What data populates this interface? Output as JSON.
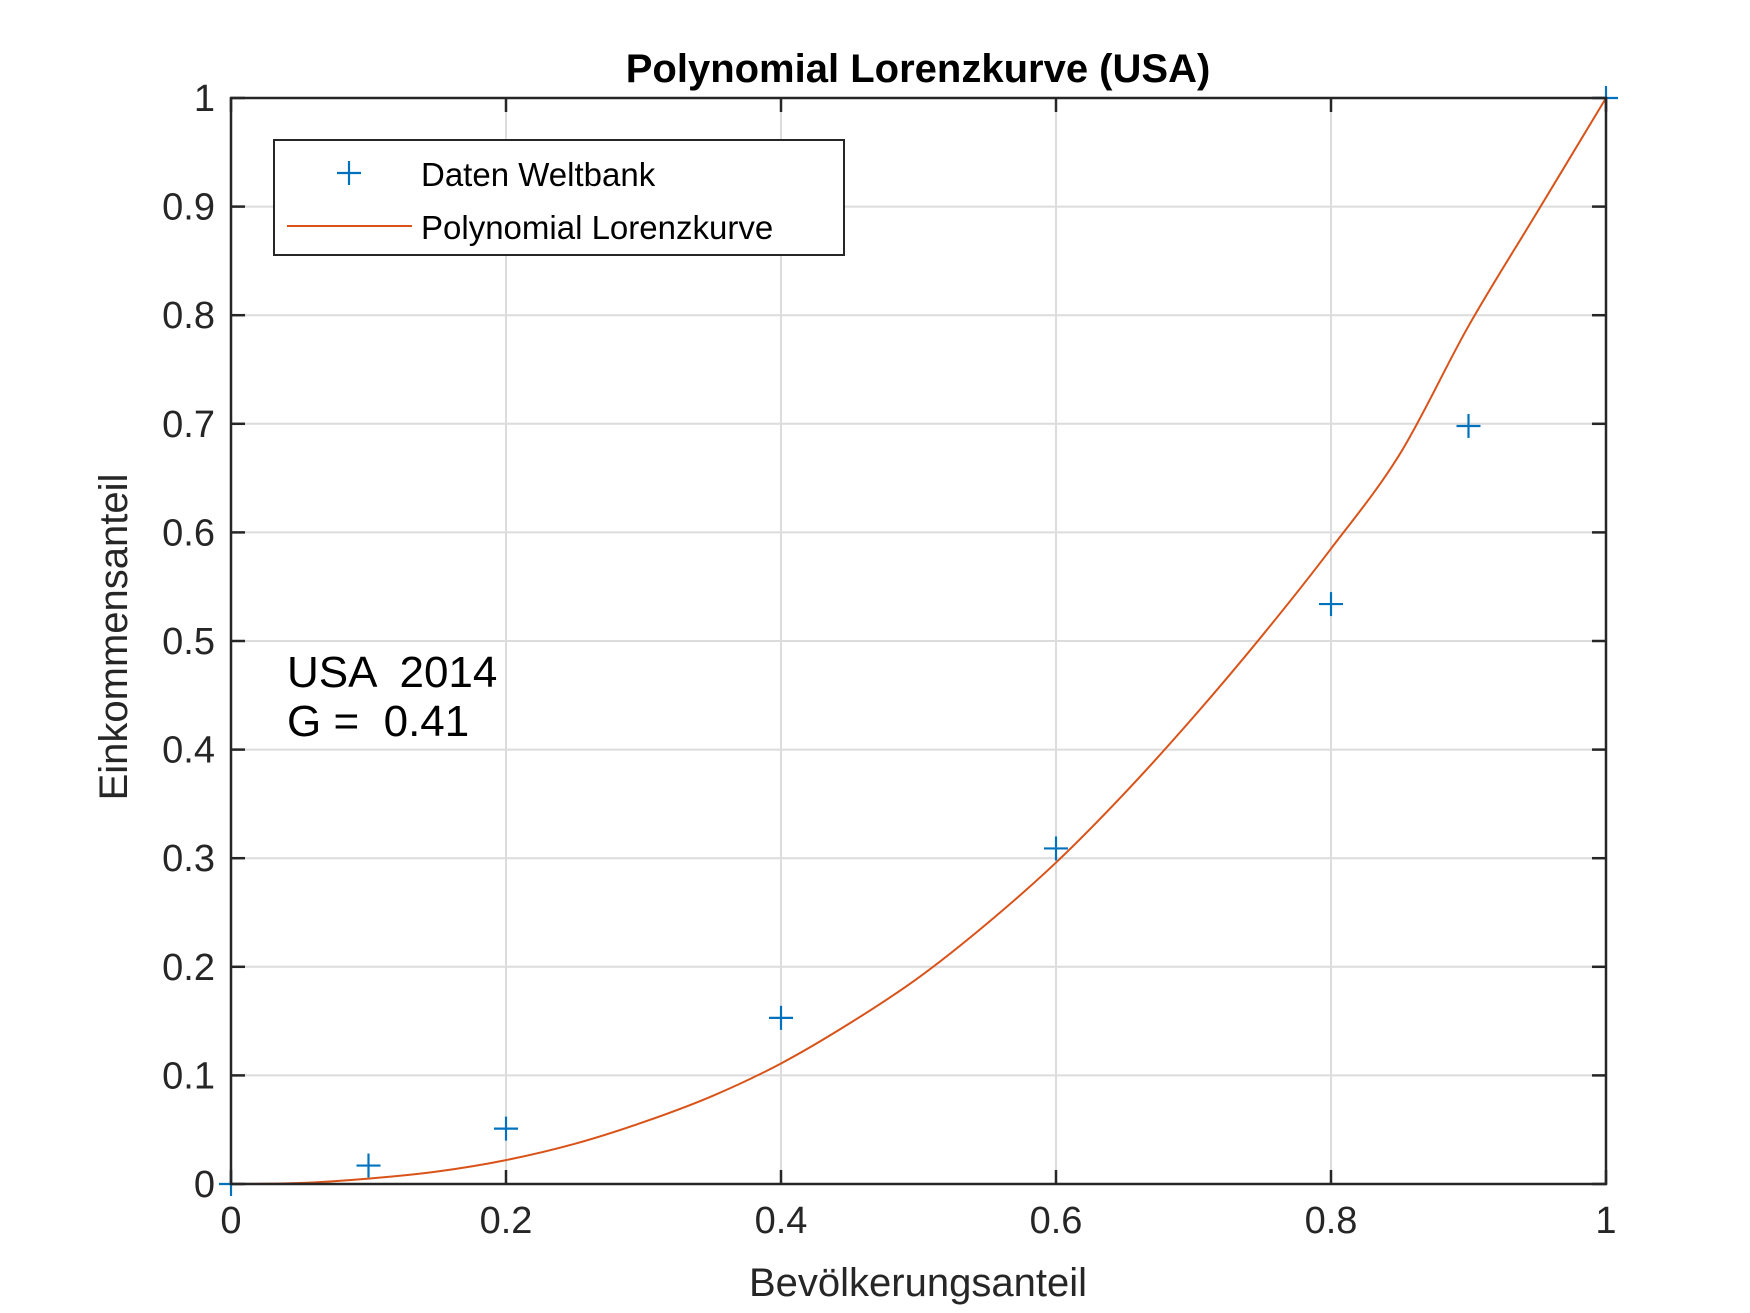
{
  "chart_data": {
    "type": "line",
    "title": "Polynomial Lorenzkurve (USA)",
    "xlabel": "Bevölkerungsanteil",
    "ylabel": "Einkommensanteil",
    "xlim": [
      0,
      1
    ],
    "ylim": [
      0,
      1
    ],
    "grid": true,
    "legend_placement": "top-left",
    "x_ticks": [
      "0",
      "0.2",
      "0.4",
      "0.6",
      "0.8",
      "1"
    ],
    "y_ticks": [
      "0",
      "0.1",
      "0.2",
      "0.3",
      "0.4",
      "0.5",
      "0.6",
      "0.7",
      "0.8",
      "0.9",
      "1"
    ],
    "series": [
      {
        "name": "Daten Weltbank",
        "kind": "scatter",
        "marker": "plus",
        "color": "#0072bd",
        "x": [
          0,
          0.1,
          0.2,
          0.4,
          0.6,
          0.8,
          0.9,
          1.0
        ],
        "y": [
          0,
          0.017,
          0.051,
          0.153,
          0.309,
          0.534,
          0.698,
          1.0
        ]
      },
      {
        "name": "Polynomial Lorenzkurve",
        "kind": "line",
        "color": "#d95319",
        "x": [
          0,
          0.05,
          0.1,
          0.15,
          0.2,
          0.25,
          0.3,
          0.35,
          0.4,
          0.45,
          0.5,
          0.55,
          0.6,
          0.65,
          0.7,
          0.75,
          0.8,
          0.85,
          0.9,
          0.95,
          1.0
        ],
        "y": [
          0,
          0.0009,
          0.005,
          0.0115,
          0.022,
          0.037,
          0.057,
          0.081,
          0.111,
          0.148,
          0.19,
          0.24,
          0.296,
          0.36,
          0.43,
          0.505,
          0.585,
          0.672,
          0.79,
          0.895,
          1.0
        ]
      }
    ],
    "annotations": [
      "USA  2014",
      "G =  0.41"
    ]
  }
}
